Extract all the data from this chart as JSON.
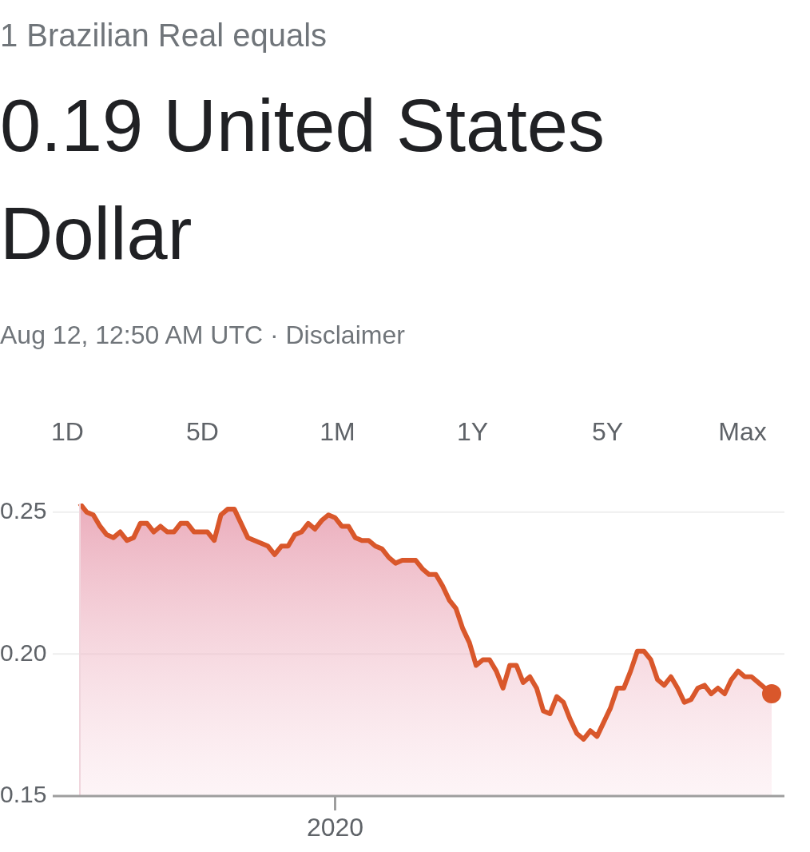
{
  "chart_data": {
    "type": "area",
    "subtitle": "1 Brazilian Real equals",
    "title": "0.19 United States Dollar",
    "annotations": [
      "Aug 12, 12:50 AM UTC · Disclaimer",
      "1D",
      "5D",
      "1M",
      "1Y",
      "5Y",
      "Max"
    ],
    "categories": [
      null,
      null,
      null,
      null,
      null,
      null,
      null,
      null,
      null,
      null,
      null,
      null,
      null,
      null,
      null,
      null,
      null,
      null,
      null,
      null,
      null,
      null,
      null,
      null,
      null,
      null,
      null,
      null,
      null,
      null,
      null,
      null,
      null,
      null,
      null,
      null,
      null,
      null,
      "2020",
      null,
      null,
      null,
      null,
      null,
      null,
      null,
      null,
      null,
      null,
      null,
      null,
      null,
      null,
      null,
      null,
      null,
      null,
      null,
      null,
      null,
      null,
      null,
      null,
      null,
      null,
      null,
      null,
      null,
      null,
      null,
      null,
      null,
      null,
      null,
      null,
      null,
      null,
      null,
      null,
      null,
      null,
      null,
      null,
      null,
      null,
      null,
      null,
      null,
      null,
      null,
      null,
      null,
      null,
      null,
      null,
      null,
      null,
      null,
      null,
      null,
      null,
      null,
      null,
      null
    ],
    "ylim": [
      0.15,
      0.253
    ],
    "yticks": [
      {
        "value": 0.15,
        "label": "0.15"
      },
      {
        "value": 0.2,
        "label": "0.20"
      },
      {
        "value": 0.25,
        "label": "0.25"
      }
    ],
    "grid": "y",
    "series": [
      {
        "color": "#d9572b",
        "values": [
          0.253,
          0.25,
          0.249,
          0.245,
          0.242,
          0.241,
          0.243,
          0.24,
          0.241,
          0.246,
          0.246,
          0.243,
          0.245,
          0.243,
          0.243,
          0.246,
          0.246,
          0.243,
          0.243,
          0.243,
          0.24,
          0.249,
          0.251,
          0.251,
          0.246,
          0.241,
          0.24,
          0.239,
          0.238,
          0.235,
          0.238,
          0.238,
          0.242,
          0.243,
          0.246,
          0.244,
          0.247,
          0.249,
          0.248,
          0.245,
          0.245,
          0.241,
          0.24,
          0.24,
          0.238,
          0.237,
          0.234,
          0.232,
          0.233,
          0.233,
          0.233,
          0.23,
          0.228,
          0.228,
          0.224,
          0.219,
          0.216,
          0.209,
          0.204,
          0.196,
          0.198,
          0.198,
          0.194,
          0.188,
          0.196,
          0.196,
          0.19,
          0.192,
          0.188,
          0.18,
          0.179,
          0.185,
          0.183,
          0.177,
          0.172,
          0.17,
          0.173,
          0.171,
          0.176,
          0.181,
          0.188,
          0.188,
          0.194,
          0.201,
          0.201,
          0.198,
          0.191,
          0.189,
          0.192,
          0.188,
          0.183,
          0.184,
          0.188,
          0.189,
          0.186,
          0.188,
          0.186,
          0.191,
          0.194,
          0.192,
          0.192,
          0.19,
          0.188,
          0.186
        ]
      }
    ]
  }
}
